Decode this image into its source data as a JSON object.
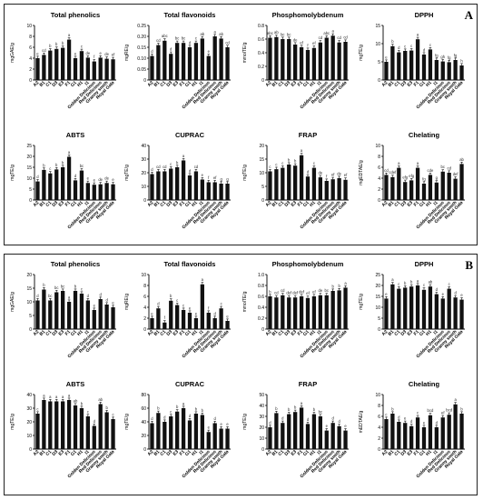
{
  "panel_labels": [
    "A",
    "B"
  ],
  "categories": [
    "A2",
    "B1",
    "C1",
    "D3",
    "E3",
    "F1",
    "G1",
    "H1",
    "I1",
    "Golden Delicious",
    "Red Delicious",
    "Granny smith",
    "Royal Gala"
  ],
  "chart_data": [
    {
      "panel": "A",
      "type": "bar",
      "title": "Total phenolics",
      "ylabel": "mgGAE/g",
      "ylim": [
        0,
        10
      ],
      "yticks": [
        "0",
        "2",
        "4",
        "6",
        "8",
        "10"
      ],
      "categories": [
        "A2",
        "B1",
        "C1",
        "D3",
        "E3",
        "F1",
        "G1",
        "H1",
        "I1",
        "Golden Delicious",
        "Red Delicious",
        "Granny smith",
        "Royal Gala"
      ],
      "values": [
        4.0,
        4.6,
        5.4,
        5.7,
        5.9,
        7.4,
        4.0,
        5.3,
        4.1,
        3.4,
        4.1,
        3.9,
        3.8
      ],
      "letters": [
        "e",
        "cd",
        "b",
        "b",
        "b",
        "a",
        "e",
        "c",
        "de",
        "f",
        "e",
        "de",
        "ef"
      ]
    },
    {
      "panel": "A",
      "type": "bar",
      "title": "Total flavonoids",
      "ylabel": "mgRE/g",
      "ylim": [
        0,
        0.25
      ],
      "yticks": [
        "0",
        "0.05",
        "0.10",
        "0.15",
        "0.20",
        "0.25"
      ],
      "categories": [
        "A2",
        "B1",
        "C1",
        "D3",
        "E3",
        "F1",
        "G1",
        "H1",
        "I1",
        "Golden Delicious",
        "Red Delicious",
        "Granny smith",
        "Royal Gala"
      ],
      "values": [
        0.11,
        0.16,
        0.18,
        0.12,
        0.17,
        0.17,
        0.15,
        0.17,
        0.19,
        0.11,
        0.2,
        0.19,
        0.15
      ],
      "letters": [
        "d",
        "cd",
        "abc",
        "d",
        "bc",
        "bc",
        "d",
        "c",
        "ab",
        "e",
        "a",
        "ab",
        "cd"
      ]
    },
    {
      "panel": "A",
      "type": "bar",
      "title": "Phosphomolybdenum",
      "ylabel": "mmolTE/g",
      "ylim": [
        0,
        0.8
      ],
      "yticks": [
        "0",
        "0.2",
        "0.4",
        "0.6",
        "0.8"
      ],
      "categories": [
        "A2",
        "B1",
        "C1",
        "D3",
        "E3",
        "F1",
        "G1",
        "H1",
        "I1",
        "Golden Delicious",
        "Red Delicious",
        "Granny smith",
        "Royal Gala"
      ],
      "values": [
        0.62,
        0.63,
        0.6,
        0.6,
        0.52,
        0.48,
        0.44,
        0.47,
        0.55,
        0.62,
        0.65,
        0.55,
        0.56
      ],
      "letters": [
        "abc",
        "ab",
        "bc",
        "bc",
        "de",
        "ef",
        "f",
        "ef",
        "cd",
        "abc",
        "a",
        "cd",
        "cd"
      ]
    },
    {
      "panel": "A",
      "type": "bar",
      "title": "DPPH",
      "ylabel": "mgTE/g",
      "ylim": [
        0,
        15
      ],
      "yticks": [
        "0",
        "5",
        "10",
        "15"
      ],
      "categories": [
        "A2",
        "B1",
        "C1",
        "D3",
        "E3",
        "F1",
        "G1",
        "H1",
        "I1",
        "Golden Delicious",
        "Red Delicious",
        "Granny smith",
        "Royal Gala"
      ],
      "values": [
        5.0,
        9.3,
        7.6,
        8.0,
        8.1,
        11.2,
        7.0,
        8.4,
        5.5,
        5.1,
        4.9,
        5.5,
        4.0
      ],
      "letters": [
        "e",
        "b",
        "d",
        "c",
        "c",
        "a",
        "d",
        "c",
        "fg",
        "gh",
        "fg",
        "fg",
        "h"
      ]
    },
    {
      "panel": "A",
      "type": "bar",
      "title": "ABTS",
      "ylabel": "mgTE/g",
      "ylim": [
        0,
        25
      ],
      "yticks": [
        "0",
        "5",
        "10",
        "15",
        "20",
        "25"
      ],
      "categories": [
        "A2",
        "B1",
        "C1",
        "D3",
        "E3",
        "F1",
        "G1",
        "H1",
        "I1",
        "Golden Delicious",
        "Red Delicious",
        "Granny smith",
        "Royal Gala"
      ],
      "values": [
        8.5,
        13.8,
        12.2,
        14.0,
        15.0,
        19.8,
        9.0,
        13.5,
        7.8,
        7.0,
        7.2,
        7.8,
        7.2
      ],
      "letters": [
        "d",
        "b",
        "c",
        "b",
        "b",
        "a",
        "d",
        "bc",
        "e",
        "e",
        "de",
        "de",
        "e"
      ]
    },
    {
      "panel": "A",
      "type": "bar",
      "title": "CUPRAC",
      "ylabel": "mgTE/g",
      "ylim": [
        0,
        40
      ],
      "yticks": [
        "0",
        "10",
        "20",
        "30",
        "40"
      ],
      "categories": [
        "A2",
        "B1",
        "C1",
        "D3",
        "E3",
        "F1",
        "G1",
        "H1",
        "I1",
        "Golden Delicious",
        "Red Delicious",
        "Granny smith",
        "Royal Gala"
      ],
      "values": [
        19,
        21,
        21,
        23,
        24,
        29,
        18,
        21,
        15,
        13,
        13,
        12,
        12
      ],
      "letters": [
        "d",
        "cd",
        "cd",
        "c",
        "b",
        "a",
        "d",
        "cd",
        "e",
        "f",
        "ef",
        "g",
        "g"
      ]
    },
    {
      "panel": "A",
      "type": "bar",
      "title": "FRAP",
      "ylabel": "mgTE/g",
      "ylim": [
        0,
        20
      ],
      "yticks": [
        "0",
        "5",
        "10",
        "15",
        "20"
      ],
      "categories": [
        "A2",
        "B1",
        "C1",
        "D3",
        "E3",
        "F1",
        "G1",
        "H1",
        "I1",
        "Golden Delicious",
        "Red Delicious",
        "Granny smith",
        "Royal Gala"
      ],
      "values": [
        10.5,
        11.3,
        11.8,
        13.0,
        12.6,
        16.4,
        8.6,
        11.8,
        8.3,
        7.0,
        7.6,
        8.0,
        7.4
      ],
      "letters": [
        "c",
        "c",
        "c",
        "b",
        "b",
        "a",
        "d",
        "c",
        "de",
        "f",
        "ef",
        "de",
        "ef"
      ]
    },
    {
      "panel": "A",
      "type": "bar",
      "title": "Chelating",
      "ylabel": "mgEDTAE/g",
      "ylim": [
        0,
        10
      ],
      "yticks": [
        "0",
        "2",
        "4",
        "6",
        "8",
        "10"
      ],
      "categories": [
        "A2",
        "B1",
        "C1",
        "D3",
        "E3",
        "F1",
        "G1",
        "H1",
        "I1",
        "Golden Delicious",
        "Red Delicious",
        "Granny smith",
        "Royal Gala"
      ],
      "values": [
        4.6,
        4.2,
        5.9,
        3.3,
        3.6,
        5.9,
        3.0,
        4.6,
        3.2,
        5.2,
        5.0,
        3.9,
        6.6
      ],
      "letters": [
        "cd",
        "cdef",
        "a",
        "efg",
        "efg",
        "a",
        "fg",
        "cde",
        "g",
        "bc",
        "cd",
        "def",
        "ab"
      ]
    },
    {
      "panel": "B",
      "type": "bar",
      "title": "Total phenolics",
      "ylabel": "mgGAE/g",
      "ylim": [
        0,
        20
      ],
      "yticks": [
        "0",
        "5",
        "10",
        "15",
        "20"
      ],
      "categories": [
        "A2",
        "B1",
        "C1",
        "D3",
        "E3",
        "F1",
        "G1",
        "H1",
        "I1",
        "Golden Delicious",
        "Red Delicious",
        "Granny smith",
        "Royal Gala"
      ],
      "values": [
        10.5,
        14.5,
        10.5,
        13.5,
        14.0,
        10.0,
        14.0,
        13.0,
        10.5,
        7.0,
        11.0,
        9.0,
        8.0
      ],
      "letters": [
        "d",
        "b",
        "bc",
        "bc",
        "bc",
        "a",
        "b",
        "c",
        "d",
        "e",
        "d",
        "d",
        "e"
      ]
    },
    {
      "panel": "B",
      "type": "bar",
      "title": "Total flavonoids",
      "ylabel": "mgRE/g",
      "ylim": [
        0,
        10
      ],
      "yticks": [
        "0",
        "2",
        "4",
        "6",
        "8",
        "10"
      ],
      "categories": [
        "A2",
        "B1",
        "C1",
        "D3",
        "E3",
        "F1",
        "G1",
        "H1",
        "I1",
        "Golden Delicious",
        "Red Delicious",
        "Granny smith",
        "Royal Gala"
      ],
      "values": [
        2.0,
        3.8,
        1.2,
        5.2,
        4.4,
        3.5,
        3.0,
        2.0,
        8.2,
        3.0,
        2.0,
        3.8,
        1.5
      ],
      "letters": [
        "e",
        "d",
        "f",
        "b",
        "c",
        "c",
        "e",
        "e",
        "a",
        "f",
        "d",
        "c",
        "e"
      ]
    },
    {
      "panel": "B",
      "type": "bar",
      "title": "Phosphomolybdenum",
      "ylabel": "mmolTE/g",
      "ylim": [
        0,
        1.0
      ],
      "yticks": [
        "0",
        "0.2",
        "0.4",
        "0.6",
        "0.8",
        "1.0"
      ],
      "categories": [
        "A2",
        "B1",
        "C1",
        "D3",
        "E3",
        "F1",
        "G1",
        "H1",
        "I1",
        "Golden Delicious",
        "Red Delicious",
        "Granny smith",
        "Royal Gala"
      ],
      "values": [
        0.6,
        0.58,
        0.62,
        0.58,
        0.58,
        0.6,
        0.57,
        0.6,
        0.62,
        0.62,
        0.7,
        0.71,
        0.76
      ],
      "letters": [
        "b",
        "cd",
        "cd",
        "def",
        "def",
        "def",
        "ef",
        "ef",
        "de",
        "bc",
        "b",
        "b",
        "a"
      ]
    },
    {
      "panel": "B",
      "type": "bar",
      "title": "DPPH",
      "ylabel": "mgTE/g",
      "ylim": [
        0,
        25
      ],
      "yticks": [
        "0",
        "5",
        "10",
        "15",
        "20",
        "25"
      ],
      "categories": [
        "A2",
        "B1",
        "C1",
        "D3",
        "E3",
        "F1",
        "G1",
        "H1",
        "I1",
        "Golden Delicious",
        "Red Delicious",
        "Granny smith",
        "Royal Gala"
      ],
      "values": [
        14.0,
        20.5,
        18.5,
        19.0,
        19.5,
        20.0,
        18.0,
        19.5,
        16.0,
        14.0,
        18.5,
        14.5,
        13.5
      ],
      "letters": [
        "e",
        "a",
        "c",
        "b",
        "b",
        "a",
        "c",
        "ab",
        "d",
        "e",
        "c",
        "d",
        "e"
      ]
    },
    {
      "panel": "B",
      "type": "bar",
      "title": "ABTS",
      "ylabel": "mgTE/g",
      "ylim": [
        0,
        40
      ],
      "yticks": [
        "0",
        "10",
        "20",
        "30",
        "40"
      ],
      "categories": [
        "A2",
        "B1",
        "C1",
        "D3",
        "E3",
        "F1",
        "G1",
        "H1",
        "I1",
        "Golden Delicious",
        "Red Delicious",
        "Granny smith",
        "Royal Gala"
      ],
      "values": [
        26,
        36,
        35,
        35,
        35,
        36,
        32,
        30,
        24,
        17,
        33,
        27,
        22
      ],
      "letters": [
        "c",
        "a",
        "a",
        "a",
        "a",
        "a",
        "ab",
        "b",
        "c",
        "d",
        "ab",
        "b",
        "c"
      ]
    },
    {
      "panel": "B",
      "type": "bar",
      "title": "CUPRAC",
      "ylabel": "mgTE/g",
      "ylim": [
        0,
        80
      ],
      "yticks": [
        "0",
        "20",
        "40",
        "60",
        "80"
      ],
      "categories": [
        "A2",
        "B1",
        "C1",
        "D3",
        "E3",
        "F1",
        "G1",
        "H1",
        "I1",
        "Golden Delicious",
        "Red Delicious",
        "Granny smith",
        "Royal Gala"
      ],
      "values": [
        38,
        53,
        40,
        48,
        55,
        60,
        42,
        52,
        50,
        25,
        38,
        30,
        30
      ],
      "letters": [
        "d",
        "b",
        "d",
        "c",
        "b",
        "a",
        "d",
        "b",
        "b",
        "e",
        "d",
        "e",
        "e"
      ]
    },
    {
      "panel": "B",
      "type": "bar",
      "title": "FRAP",
      "ylabel": "mgTE/g",
      "ylim": [
        0,
        50
      ],
      "yticks": [
        "0",
        "10",
        "20",
        "30",
        "40",
        "50"
      ],
      "categories": [
        "A2",
        "B1",
        "C1",
        "D3",
        "E3",
        "F1",
        "G1",
        "H1",
        "I1",
        "Golden Delicious",
        "Red Delicious",
        "Granny smith",
        "Royal Gala"
      ],
      "values": [
        20,
        33,
        24,
        32,
        34,
        38,
        23,
        32,
        30,
        17,
        24,
        21,
        17
      ],
      "letters": [
        "d",
        "b",
        "d",
        "b",
        "b",
        "a",
        "d",
        "b",
        "bc",
        "e",
        "d",
        "d",
        "e"
      ]
    },
    {
      "panel": "B",
      "type": "bar",
      "title": "Chelating",
      "ylabel": "mEDTAE/g",
      "ylim": [
        0,
        10
      ],
      "yticks": [
        "0",
        "2",
        "4",
        "6",
        "8",
        "10"
      ],
      "categories": [
        "A2",
        "B1",
        "C1",
        "D3",
        "E3",
        "F1",
        "G1",
        "H1",
        "I1",
        "Golden Delicious",
        "Red Delicious",
        "Granny smith",
        "Royal Gala"
      ],
      "values": [
        5.5,
        6.5,
        5.0,
        4.8,
        4.2,
        5.8,
        4.0,
        6.2,
        4.0,
        5.8,
        6.3,
        8.2,
        6.5
      ],
      "letters": [
        "c",
        "b",
        "d",
        "e",
        "d",
        "c",
        "e",
        "bcd",
        "d",
        "ef",
        "bcd",
        "a",
        "b"
      ]
    }
  ]
}
